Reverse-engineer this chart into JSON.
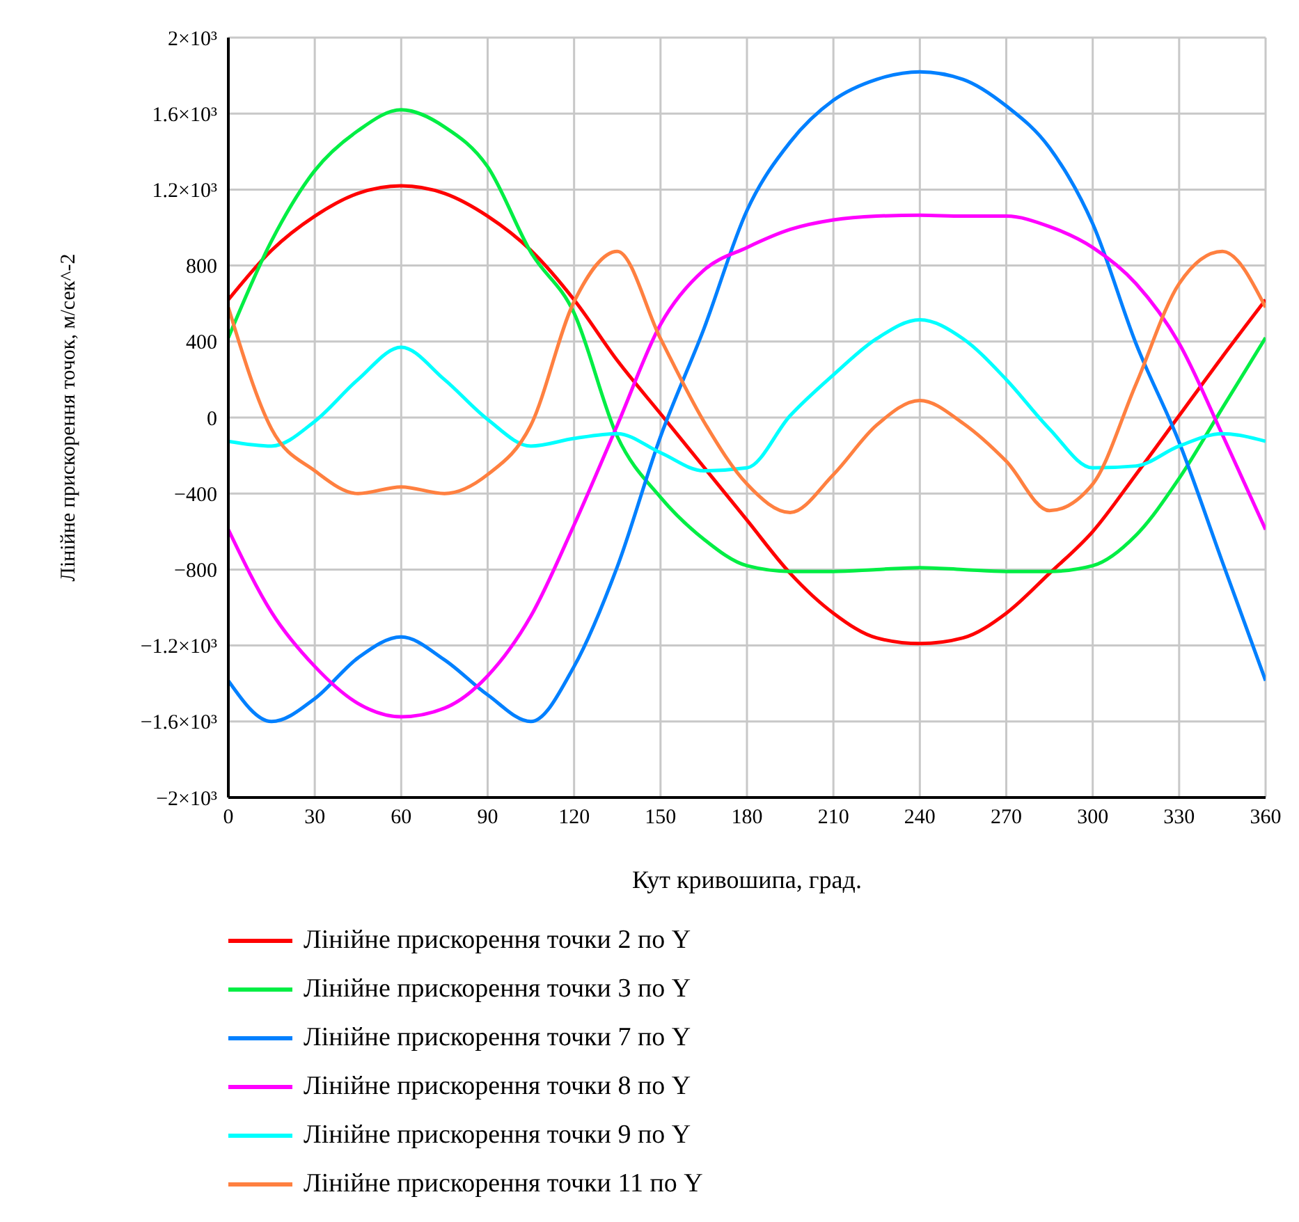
{
  "chart_data": {
    "type": "line",
    "xlabel": "Кут кривошипа, град.",
    "ylabel": "Лінійне прискорення точок, м/сек^-2",
    "x": [
      0,
      15,
      30,
      45,
      60,
      75,
      90,
      105,
      120,
      135,
      150,
      165,
      180,
      195,
      210,
      225,
      240,
      255,
      270,
      285,
      300,
      315,
      330,
      345,
      360
    ],
    "xlim": [
      0,
      360
    ],
    "xticks": [
      0,
      30,
      60,
      90,
      120,
      150,
      180,
      210,
      240,
      270,
      300,
      330,
      360
    ],
    "ylim": [
      -2000,
      2000
    ],
    "yticks": [
      {
        "value": -2000,
        "label": "−2×10³"
      },
      {
        "value": -1600,
        "label": "−1.6×10³"
      },
      {
        "value": -1200,
        "label": "−1.2×10³"
      },
      {
        "value": -800,
        "label": "−800"
      },
      {
        "value": -400,
        "label": "−400"
      },
      0,
      400,
      800,
      {
        "value": 1200,
        "label": "1.2×10³"
      },
      {
        "value": 1600,
        "label": "1.6×10³"
      },
      {
        "value": 2000,
        "label": "2×10³"
      }
    ],
    "grid": true,
    "legend": "bottom",
    "marker": "none",
    "line_style": "solid",
    "series": [
      {
        "name": "Лінійне прискорення точки 2 по Y",
        "color": "#ff0000",
        "values": [
          620,
          880,
          1060,
          1180,
          1220,
          1180,
          1060,
          880,
          620,
          300,
          20,
          -260,
          -540,
          -820,
          -1030,
          -1160,
          -1190,
          -1160,
          -1030,
          -820,
          -600,
          -300,
          10,
          320,
          620
        ]
      },
      {
        "name": "Лінійне прискорення точки 3 по Y",
        "color": "#00ee44",
        "values": [
          420,
          930,
          1300,
          1510,
          1620,
          1530,
          1320,
          870,
          550,
          -100,
          -420,
          -640,
          -780,
          -810,
          -810,
          -800,
          -790,
          -800,
          -810,
          -810,
          -780,
          -620,
          -320,
          50,
          420
        ]
      },
      {
        "name": "Лінійне прискорення точки 7 по Y",
        "color": "#0080ff",
        "values": [
          -1385,
          -1600,
          -1480,
          -1265,
          -1155,
          -1275,
          -1460,
          -1600,
          -1310,
          -785,
          -100,
          465,
          1090,
          1450,
          1670,
          1780,
          1820,
          1780,
          1640,
          1420,
          1020,
          390,
          -130,
          -760,
          -1385
        ]
      },
      {
        "name": "Лінійне прискорення точки 8 по Y",
        "color": "#ff00ff",
        "values": [
          -590,
          -1025,
          -1310,
          -1505,
          -1575,
          -1530,
          -1360,
          -1045,
          -565,
          -40,
          490,
          775,
          895,
          990,
          1040,
          1060,
          1065,
          1060,
          1060,
          1005,
          895,
          705,
          390,
          -90,
          -590
        ]
      },
      {
        "name": "Лінійне прискорення точки 9 по Y",
        "color": "#00ffff",
        "values": [
          -125,
          -150,
          -20,
          200,
          370,
          200,
          -10,
          -150,
          -110,
          -85,
          -185,
          -280,
          -265,
          10,
          225,
          415,
          515,
          415,
          200,
          -60,
          -265,
          -255,
          -150,
          -85,
          -125
        ]
      },
      {
        "name": "Лінійне прискорення точки 11 по Y",
        "color": "#ff8040",
        "values": [
          580,
          -60,
          -280,
          -400,
          -365,
          -400,
          -300,
          -40,
          610,
          875,
          415,
          -20,
          -350,
          -500,
          -300,
          -40,
          90,
          -30,
          -230,
          -490,
          -350,
          175,
          705,
          875,
          580
        ]
      }
    ]
  }
}
